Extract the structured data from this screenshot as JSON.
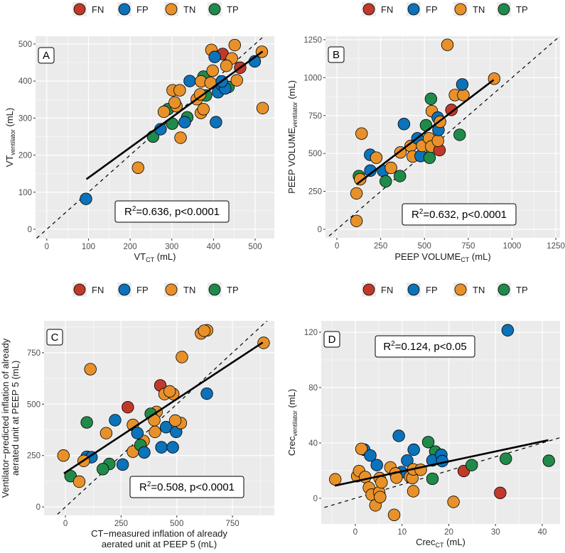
{
  "legend": {
    "entries": [
      {
        "label": "FN",
        "color": "#C0392B"
      },
      {
        "label": "FP",
        "color": "#0C72BA"
      },
      {
        "label": "TN",
        "color": "#E8912A"
      },
      {
        "label": "TP",
        "color": "#1F8A4A"
      }
    ]
  },
  "chart_data": [
    {
      "type": "scatter",
      "panel_label": "A",
      "xlim": [
        -27,
        546
      ],
      "ylim": [
        -25,
        521
      ],
      "xticks": [
        0,
        100,
        200,
        300,
        400,
        500
      ],
      "yticks": [
        0,
        100,
        200,
        300,
        400,
        500
      ],
      "xlabel": {
        "main": "VT",
        "sub": "CT",
        "suffix": " (mL)"
      },
      "ylabel": {
        "main": "VT",
        "sub": "ventilator",
        "suffix": " (mL)"
      },
      "annotation": {
        "prefix": "R",
        "sup": "2",
        "text": "=0.636, p<0.0001"
      },
      "fit_line": {
        "x": [
          95,
          518
        ],
        "y": [
          135,
          480
        ]
      },
      "identity_line": true,
      "points": [
        {
          "x": 94,
          "y": 82,
          "c": "FP"
        },
        {
          "x": 219,
          "y": 166,
          "c": "TN"
        },
        {
          "x": 321,
          "y": 247,
          "c": "TN"
        },
        {
          "x": 255,
          "y": 250,
          "c": "TP"
        },
        {
          "x": 273,
          "y": 270,
          "c": "FP"
        },
        {
          "x": 301,
          "y": 285,
          "c": "TP"
        },
        {
          "x": 337,
          "y": 302,
          "c": "TP"
        },
        {
          "x": 331,
          "y": 289,
          "c": "FP"
        },
        {
          "x": 291,
          "y": 324,
          "c": "TP"
        },
        {
          "x": 281,
          "y": 317,
          "c": "TN"
        },
        {
          "x": 311,
          "y": 332,
          "c": "TN"
        },
        {
          "x": 307,
          "y": 342,
          "c": "TN"
        },
        {
          "x": 302,
          "y": 375,
          "c": "TN"
        },
        {
          "x": 319,
          "y": 375,
          "c": "TN"
        },
        {
          "x": 343,
          "y": 400,
          "c": "FP"
        },
        {
          "x": 370,
          "y": 314,
          "c": "TN"
        },
        {
          "x": 376,
          "y": 324,
          "c": "TN"
        },
        {
          "x": 360,
          "y": 351,
          "c": "TN"
        },
        {
          "x": 382,
          "y": 361,
          "c": "TP"
        },
        {
          "x": 368,
          "y": 364,
          "c": "TN"
        },
        {
          "x": 376,
          "y": 412,
          "c": "TP"
        },
        {
          "x": 370,
          "y": 399,
          "c": "TN"
        },
        {
          "x": 393,
          "y": 395,
          "c": "TN"
        },
        {
          "x": 436,
          "y": 384,
          "c": "TP"
        },
        {
          "x": 411,
          "y": 370,
          "c": "FP"
        },
        {
          "x": 420,
          "y": 390,
          "c": "FP"
        },
        {
          "x": 428,
          "y": 380,
          "c": "FP"
        },
        {
          "x": 420,
          "y": 399,
          "c": "FP"
        },
        {
          "x": 406,
          "y": 289,
          "c": "FP"
        },
        {
          "x": 398,
          "y": 428,
          "c": "TN"
        },
        {
          "x": 395,
          "y": 484,
          "c": "TN"
        },
        {
          "x": 422,
          "y": 473,
          "c": "FN"
        },
        {
          "x": 403,
          "y": 465,
          "c": "FP"
        },
        {
          "x": 444,
          "y": 461,
          "c": "TN"
        },
        {
          "x": 431,
          "y": 441,
          "c": "TN"
        },
        {
          "x": 451,
          "y": 497,
          "c": "TN"
        },
        {
          "x": 464,
          "y": 436,
          "c": "FN"
        },
        {
          "x": 456,
          "y": 402,
          "c": "TN"
        },
        {
          "x": 499,
          "y": 453,
          "c": "FP"
        },
        {
          "x": 516,
          "y": 479,
          "c": "TN"
        },
        {
          "x": 518,
          "y": 327,
          "c": "TN"
        }
      ]
    },
    {
      "type": "scatter",
      "panel_label": "B",
      "xlim": [
        -65,
        1274
      ],
      "ylim": [
        -56,
        1273
      ],
      "xticks": [
        0,
        250,
        500,
        750,
        1000,
        1250
      ],
      "yticks": [
        0,
        250,
        500,
        750,
        1000,
        1250
      ],
      "xlabel": {
        "main": "PEEP VOLUME",
        "sub": "CT",
        "suffix": " (mL)"
      },
      "ylabel": {
        "main": "PEEP VOLUME",
        "sub": "ventilator",
        "suffix": " (mL)"
      },
      "annotation": {
        "prefix": "R",
        "sup": "2",
        "text": "=0.632, p<0.0001"
      },
      "fit_line": {
        "x": [
          112,
          895
        ],
        "y": [
          296,
          985
        ]
      },
      "identity_line": true,
      "points": [
        {
          "x": 112,
          "y": 55,
          "c": "TN"
        },
        {
          "x": 112,
          "y": 237,
          "c": "TN"
        },
        {
          "x": 126,
          "y": 351,
          "c": "TP"
        },
        {
          "x": 133,
          "y": 330,
          "c": "TN"
        },
        {
          "x": 141,
          "y": 631,
          "c": "TN"
        },
        {
          "x": 190,
          "y": 491,
          "c": "FP"
        },
        {
          "x": 191,
          "y": 387,
          "c": "FP"
        },
        {
          "x": 225,
          "y": 472,
          "c": "TN"
        },
        {
          "x": 264,
          "y": 385,
          "c": "FP"
        },
        {
          "x": 309,
          "y": 405,
          "c": "TN"
        },
        {
          "x": 279,
          "y": 316,
          "c": "TP"
        },
        {
          "x": 360,
          "y": 351,
          "c": "TP"
        },
        {
          "x": 363,
          "y": 507,
          "c": "TN"
        },
        {
          "x": 421,
          "y": 549,
          "c": "TN"
        },
        {
          "x": 433,
          "y": 480,
          "c": "TN"
        },
        {
          "x": 383,
          "y": 694,
          "c": "FP"
        },
        {
          "x": 478,
          "y": 483,
          "c": "FP"
        },
        {
          "x": 460,
          "y": 600,
          "c": "FP"
        },
        {
          "x": 487,
          "y": 550,
          "c": "TN"
        },
        {
          "x": 529,
          "y": 472,
          "c": "TP"
        },
        {
          "x": 509,
          "y": 686,
          "c": "TP"
        },
        {
          "x": 526,
          "y": 600,
          "c": "TN"
        },
        {
          "x": 537,
          "y": 860,
          "c": "TP"
        },
        {
          "x": 542,
          "y": 779,
          "c": "TN"
        },
        {
          "x": 539,
          "y": 546,
          "c": "TN"
        },
        {
          "x": 586,
          "y": 522,
          "c": "FN"
        },
        {
          "x": 577,
          "y": 584,
          "c": "TN"
        },
        {
          "x": 580,
          "y": 655,
          "c": "FP"
        },
        {
          "x": 576,
          "y": 736,
          "c": "FP"
        },
        {
          "x": 589,
          "y": 709,
          "c": "TN"
        },
        {
          "x": 654,
          "y": 787,
          "c": "FN"
        },
        {
          "x": 674,
          "y": 885,
          "c": "TN"
        },
        {
          "x": 722,
          "y": 885,
          "c": "TN"
        },
        {
          "x": 716,
          "y": 955,
          "c": "FP"
        },
        {
          "x": 701,
          "y": 623,
          "c": "TP"
        },
        {
          "x": 631,
          "y": 1216,
          "c": "TN"
        },
        {
          "x": 898,
          "y": 993,
          "c": "TN"
        }
      ]
    },
    {
      "type": "scatter",
      "panel_label": "C",
      "xlim": [
        -96,
        938
      ],
      "ylim": [
        -41,
        905
      ],
      "xticks": [
        0,
        250,
        500,
        750
      ],
      "yticks": [
        0,
        250,
        500,
        750
      ],
      "xlabel_lines": [
        "CT−measured inflation of already",
        "aerated unit at PEEP 5 (mL)"
      ],
      "ylabel_lines": [
        "Ventilator−predicted inflation of already",
        "aerated unit at PEEP 5 (mL)"
      ],
      "annotation": {
        "prefix": "R",
        "sup": "2",
        "text": "=0.508, p<0.0001"
      },
      "fit_line": {
        "x": [
          -7,
          886
        ],
        "y": [
          163,
          800
        ]
      },
      "identity_line": true,
      "points": [
        {
          "x": -9,
          "y": 250,
          "c": "TN"
        },
        {
          "x": 23,
          "y": 150,
          "c": "TP"
        },
        {
          "x": 62,
          "y": 123,
          "c": "TN"
        },
        {
          "x": 96,
          "y": 244,
          "c": "FP"
        },
        {
          "x": 117,
          "y": 242,
          "c": "FP"
        },
        {
          "x": 82,
          "y": 224,
          "c": "TN"
        },
        {
          "x": 96,
          "y": 411,
          "c": "TP"
        },
        {
          "x": 112,
          "y": 670,
          "c": "TN"
        },
        {
          "x": 183,
          "y": 359,
          "c": "TN"
        },
        {
          "x": 197,
          "y": 209,
          "c": "TP"
        },
        {
          "x": 168,
          "y": 184,
          "c": "TP"
        },
        {
          "x": 223,
          "y": 422,
          "c": "FP"
        },
        {
          "x": 257,
          "y": 206,
          "c": "FP"
        },
        {
          "x": 280,
          "y": 485,
          "c": "FN"
        },
        {
          "x": 303,
          "y": 399,
          "c": "TN"
        },
        {
          "x": 303,
          "y": 269,
          "c": "TN"
        },
        {
          "x": 351,
          "y": 321,
          "c": "TN"
        },
        {
          "x": 323,
          "y": 359,
          "c": "FP"
        },
        {
          "x": 337,
          "y": 301,
          "c": "TP"
        },
        {
          "x": 354,
          "y": 265,
          "c": "FP"
        },
        {
          "x": 402,
          "y": 365,
          "c": "TN"
        },
        {
          "x": 409,
          "y": 462,
          "c": "TN"
        },
        {
          "x": 383,
          "y": 453,
          "c": "TP"
        },
        {
          "x": 399,
          "y": 422,
          "c": "TN"
        },
        {
          "x": 431,
          "y": 290,
          "c": "FP"
        },
        {
          "x": 452,
          "y": 388,
          "c": "FP"
        },
        {
          "x": 482,
          "y": 290,
          "c": "FP"
        },
        {
          "x": 497,
          "y": 365,
          "c": "FP"
        },
        {
          "x": 518,
          "y": 408,
          "c": "TN"
        },
        {
          "x": 493,
          "y": 420,
          "c": "TN"
        },
        {
          "x": 426,
          "y": 591,
          "c": "FN"
        },
        {
          "x": 445,
          "y": 549,
          "c": "TN"
        },
        {
          "x": 484,
          "y": 549,
          "c": "TN"
        },
        {
          "x": 468,
          "y": 562,
          "c": "TN"
        },
        {
          "x": 635,
          "y": 551,
          "c": "FP"
        },
        {
          "x": 523,
          "y": 729,
          "c": "TN"
        },
        {
          "x": 609,
          "y": 844,
          "c": "TN"
        },
        {
          "x": 636,
          "y": 859,
          "c": "TN"
        },
        {
          "x": 623,
          "y": 857,
          "c": "TN"
        },
        {
          "x": 890,
          "y": 798,
          "c": "TN"
        }
      ]
    },
    {
      "type": "scatter",
      "panel_label": "D",
      "xlim": [
        -7.3,
        43.8
      ],
      "ylim": [
        -18.5,
        128.2
      ],
      "xticks": [
        0,
        10,
        20,
        30,
        40
      ],
      "yticks": [
        0,
        40,
        80,
        120
      ],
      "xlabel": {
        "main": "Crec",
        "sub": "CT",
        "suffix": " (mL)"
      },
      "ylabel": {
        "main": "Crec",
        "sub": "ventilator",
        "suffix": " (mL)"
      },
      "annotation": {
        "prefix": "R",
        "sup": "2",
        "text": "=0.124, p<0.05"
      },
      "fit_line": {
        "x": [
          -4.4,
          41.3
        ],
        "y": [
          9.1,
          42
        ]
      },
      "identity_line": true,
      "points": [
        {
          "x": -4.3,
          "y": 13.7,
          "c": "TN"
        },
        {
          "x": 0.4,
          "y": 16,
          "c": "TN"
        },
        {
          "x": 0.8,
          "y": 19.7,
          "c": "TN"
        },
        {
          "x": 1.9,
          "y": 35.1,
          "c": "FP"
        },
        {
          "x": 1.3,
          "y": 35.7,
          "c": "TN"
        },
        {
          "x": 2.1,
          "y": 15.4,
          "c": "TN"
        },
        {
          "x": 2.9,
          "y": 7.7,
          "c": "TN"
        },
        {
          "x": 3.5,
          "y": 2.6,
          "c": "TN"
        },
        {
          "x": 3.2,
          "y": 30.9,
          "c": "FP"
        },
        {
          "x": 4.6,
          "y": 24,
          "c": "FP"
        },
        {
          "x": 4.3,
          "y": -5.1,
          "c": "TN"
        },
        {
          "x": 5.2,
          "y": 14.6,
          "c": "TN"
        },
        {
          "x": 5.1,
          "y": 4.3,
          "c": "TN"
        },
        {
          "x": 5.3,
          "y": 0.9,
          "c": "TN"
        },
        {
          "x": 5.6,
          "y": 11.5,
          "c": "TN"
        },
        {
          "x": 8.3,
          "y": -12,
          "c": "TN"
        },
        {
          "x": 9.9,
          "y": 18.9,
          "c": "FP"
        },
        {
          "x": 7.5,
          "y": 22.3,
          "c": "TN"
        },
        {
          "x": 8.6,
          "y": 18,
          "c": "TN"
        },
        {
          "x": 8.8,
          "y": 14.9,
          "c": "TN"
        },
        {
          "x": 9.3,
          "y": 45.1,
          "c": "FP"
        },
        {
          "x": 11.1,
          "y": 27.3,
          "c": "FP"
        },
        {
          "x": 11.7,
          "y": 15.4,
          "c": "TN"
        },
        {
          "x": 12.4,
          "y": 5.1,
          "c": "TN"
        },
        {
          "x": 12.2,
          "y": 14.6,
          "c": "TN"
        },
        {
          "x": 12.4,
          "y": 20.9,
          "c": "TN"
        },
        {
          "x": 14,
          "y": 20.6,
          "c": "TN"
        },
        {
          "x": 12.5,
          "y": 35.1,
          "c": "FP"
        },
        {
          "x": 15.6,
          "y": 40.6,
          "c": "TP"
        },
        {
          "x": 17.1,
          "y": 33.8,
          "c": "TP"
        },
        {
          "x": 16.5,
          "y": 27.4,
          "c": "FP"
        },
        {
          "x": 18.4,
          "y": 31.4,
          "c": "FP"
        },
        {
          "x": 18.6,
          "y": 26.9,
          "c": "FP"
        },
        {
          "x": 16.5,
          "y": 14.1,
          "c": "TP"
        },
        {
          "x": 21,
          "y": -2.6,
          "c": "TN"
        },
        {
          "x": 23.2,
          "y": 19.7,
          "c": "FN"
        },
        {
          "x": 24.9,
          "y": 24,
          "c": "TP"
        },
        {
          "x": 31,
          "y": 3.9,
          "c": "FN"
        },
        {
          "x": 32.2,
          "y": 28.6,
          "c": "TP"
        },
        {
          "x": 32.6,
          "y": 121.4,
          "c": "FP"
        },
        {
          "x": 41.4,
          "y": 27.1,
          "c": "TP"
        }
      ]
    }
  ]
}
